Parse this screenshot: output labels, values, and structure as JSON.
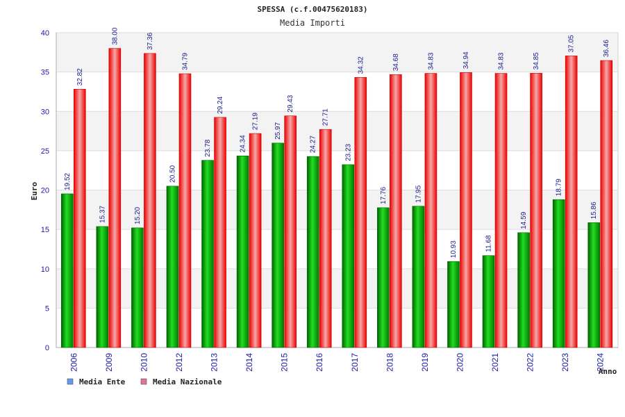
{
  "chart_data": {
    "type": "bar",
    "title": "SPESSA (c.f.00475620183)",
    "subtitle": "Media Importi",
    "xlabel": "Anno",
    "ylabel": "Euro",
    "ylim": [
      0,
      40
    ],
    "yticks": [
      0,
      5,
      10,
      15,
      20,
      25,
      30,
      35,
      40
    ],
    "yticks_labels": [
      "0",
      "5",
      "10",
      "15",
      "20",
      "25",
      "30",
      "35",
      "40"
    ],
    "grid": true,
    "legend_position": "bottom-left",
    "categories": [
      "2006",
      "2009",
      "2010",
      "2012",
      "2013",
      "2014",
      "2015",
      "2016",
      "2017",
      "2018",
      "2019",
      "2020",
      "2021",
      "2022",
      "2023",
      "2024"
    ],
    "series": [
      {
        "name": "Media Ente",
        "legend_color": "#6699ee",
        "bar_color": "#00b000",
        "values": [
          19.52,
          15.37,
          15.2,
          20.5,
          23.78,
          24.34,
          25.97,
          24.27,
          23.23,
          17.76,
          17.95,
          10.93,
          11.68,
          14.59,
          18.79,
          15.86
        ],
        "value_labels": [
          "19.52",
          "15.37",
          "15.20",
          "20.50",
          "23.78",
          "24.34",
          "25.97",
          "24.27",
          "23.23",
          "17.76",
          "17.95",
          "10.93",
          "11.68",
          "14.59",
          "18.79",
          "15.86"
        ]
      },
      {
        "name": "Media Nazionale",
        "legend_color": "#dd7799",
        "bar_color": "#ee1111",
        "values": [
          32.82,
          38.0,
          37.36,
          34.79,
          29.24,
          27.19,
          29.43,
          27.71,
          34.32,
          34.68,
          34.83,
          34.94,
          34.83,
          34.85,
          37.05,
          36.46
        ],
        "value_labels": [
          "32.82",
          "38.00",
          "37.36",
          "34.79",
          "29.24",
          "27.19",
          "29.43",
          "27.71",
          "34.32",
          "34.68",
          "34.83",
          "34.94",
          "34.83",
          "34.85",
          "37.05",
          "36.46"
        ]
      }
    ]
  }
}
